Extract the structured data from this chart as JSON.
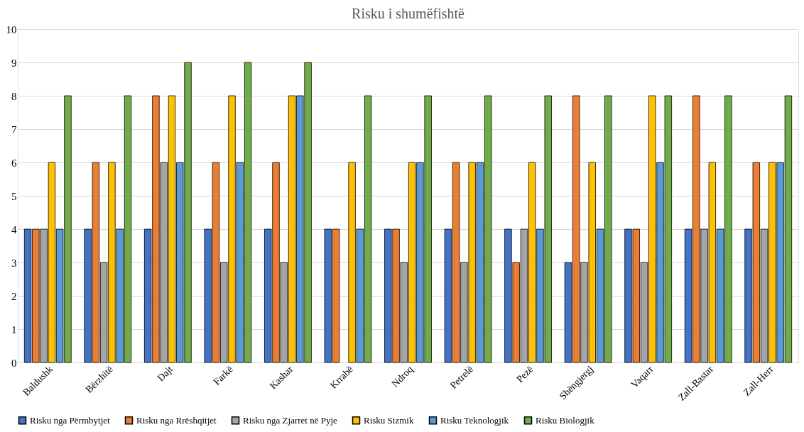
{
  "chart_data": {
    "type": "bar",
    "title": "Risku i shumëfishtë",
    "categories": [
      "Baldushk",
      "Bërzhitë",
      "Dajt",
      "Farkë",
      "Kashar",
      "Krrabë",
      "Ndroq",
      "Petrelë",
      "Pezë",
      "Shëngjergj",
      "Vaqarr",
      "Zall-Bastar",
      "Zall-Herr"
    ],
    "series": [
      {
        "name": "Risku nga Përmbytjet",
        "color": "#4472c4",
        "values": [
          4,
          4,
          4,
          4,
          4,
          4,
          4,
          4,
          4,
          3,
          4,
          4,
          4
        ]
      },
      {
        "name": "Risku nga Rrëshqitjet",
        "color": "#ed7d31",
        "values": [
          4,
          6,
          8,
          6,
          6,
          4,
          4,
          6,
          3,
          8,
          4,
          8,
          6
        ]
      },
      {
        "name": "Risku nga Zjarret në Pyje",
        "color": "#a5a5a5",
        "values": [
          4,
          3,
          6,
          3,
          3,
          null,
          3,
          3,
          4,
          3,
          3,
          4,
          4
        ]
      },
      {
        "name": "Risku Sizmik",
        "color": "#ffc000",
        "values": [
          6,
          6,
          8,
          8,
          8,
          6,
          6,
          6,
          6,
          6,
          8,
          6,
          6
        ]
      },
      {
        "name": "Risku Teknologjik",
        "color": "#5b9bd5",
        "values": [
          4,
          4,
          6,
          6,
          8,
          4,
          6,
          6,
          4,
          4,
          6,
          4,
          6
        ]
      },
      {
        "name": "Risku Biologjik",
        "color": "#70ad47",
        "values": [
          8,
          8,
          9,
          9,
          9,
          8,
          8,
          8,
          8,
          8,
          8,
          8,
          8
        ]
      }
    ],
    "ylim": [
      0,
      10
    ],
    "yticks": [
      0,
      1,
      2,
      3,
      4,
      5,
      6,
      7,
      8,
      9,
      10
    ],
    "grid": "y",
    "legend": "bottom"
  }
}
